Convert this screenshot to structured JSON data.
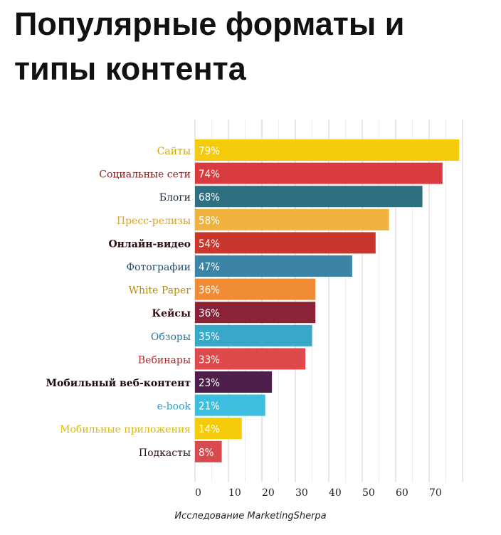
{
  "title_lines": [
    "Популярные форматы и",
    "типы контента"
  ],
  "source": "Исследование MarketingSherpa",
  "chart_data": {
    "type": "bar",
    "orientation": "horizontal",
    "categories": [
      "Сайты",
      "Социальные сети",
      "Блоги",
      "Пресс-релизы",
      "Онлайн-видео",
      "Фотографии",
      "White Paper",
      "Кейсы",
      "Обзоры",
      "Вебинары",
      "Мобильный веб-контент",
      "e-book",
      "Мобильные приложения",
      "Подкасты"
    ],
    "values": [
      79,
      74,
      68,
      58,
      54,
      47,
      36,
      36,
      35,
      33,
      23,
      21,
      14,
      8
    ],
    "value_labels": [
      "79%",
      "74%",
      "68%",
      "58%",
      "54%",
      "47%",
      "36%",
      "36%",
      "35%",
      "33%",
      "23%",
      "21%",
      "14%",
      "8%"
    ],
    "colors": [
      "#f5cc0c",
      "#d93b3f",
      "#2e6f82",
      "#f0b340",
      "#c8372d",
      "#3b84a6",
      "#ef8c35",
      "#8a2238",
      "#37a8c8",
      "#e0494b",
      "#4d1f4a",
      "#3dbde0",
      "#f5cc0c",
      "#d94a4e"
    ],
    "label_colors": [
      "#d4a800",
      "#8a1a1a",
      "#1a2a3a",
      "#d4a030",
      "#2a1010",
      "#1f4f6f",
      "#b88a10",
      "#3a1010",
      "#2a7a9a",
      "#b02a2a",
      "#1a0a10",
      "#2aa0c8",
      "#e0b800",
      "#2a1010"
    ],
    "xticks": [
      0,
      10,
      20,
      30,
      40,
      50,
      60,
      70
    ],
    "xlim": [
      0,
      80
    ],
    "grid": true
  }
}
